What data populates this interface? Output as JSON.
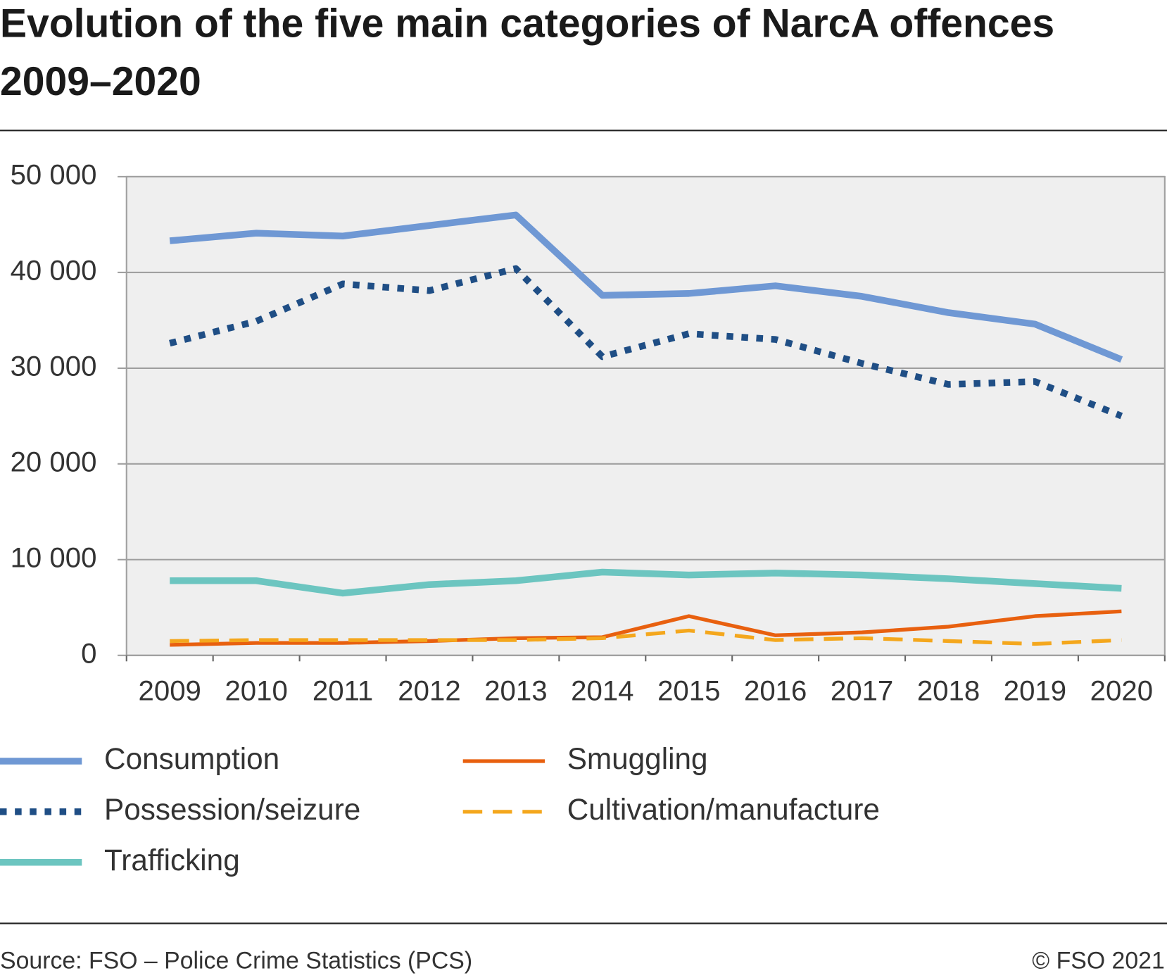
{
  "chart_data": {
    "type": "line",
    "title": [
      "Evolution of the five main categories of NarcA offences",
      "2009–2020"
    ],
    "categories": [
      "2009",
      "2010",
      "2011",
      "2012",
      "2013",
      "2014",
      "2015",
      "2016",
      "2017",
      "2018",
      "2019",
      "2020"
    ],
    "series": [
      {
        "name": "Consumption",
        "color": "#6f98d4",
        "style": "solid",
        "values": [
          43300,
          44100,
          43800,
          44900,
          46000,
          37600,
          37800,
          38600,
          37500,
          35800,
          34600,
          30900
        ]
      },
      {
        "name": "Possession/seizure",
        "color": "#1f4e85",
        "style": "dotted",
        "values": [
          32600,
          34900,
          38800,
          38100,
          40400,
          31200,
          33600,
          33000,
          30500,
          28300,
          28600,
          25000
        ]
      },
      {
        "name": "Trafficking",
        "color": "#6cc5c0",
        "style": "solid",
        "values": [
          7800,
          7800,
          6500,
          7400,
          7800,
          8700,
          8400,
          8600,
          8400,
          8000,
          7500,
          7000
        ]
      },
      {
        "name": "Smuggling",
        "color": "#e8600f",
        "style": "solid",
        "values": [
          1100,
          1300,
          1300,
          1500,
          1800,
          1900,
          4100,
          2100,
          2400,
          3000,
          4100,
          4600
        ]
      },
      {
        "name": "Cultivation/manufacture",
        "color": "#f4a71d",
        "style": "dashed",
        "values": [
          1500,
          1600,
          1600,
          1600,
          1600,
          1800,
          2600,
          1600,
          1800,
          1500,
          1200,
          1600
        ]
      }
    ],
    "ylim": [
      0,
      50000
    ],
    "yticks": [
      0,
      {
        "value": 10000,
        "label": "10 000"
      },
      {
        "value": 20000,
        "label": "20 000"
      },
      {
        "value": 30000,
        "label": "30 000"
      },
      {
        "value": 40000,
        "label": "40 000"
      },
      {
        "value": 50000,
        "label": "50 000"
      }
    ],
    "grid": true,
    "source": "Source: FSO – Police Crime Statistics (PCS)",
    "copyright": "© FSO 2021"
  }
}
